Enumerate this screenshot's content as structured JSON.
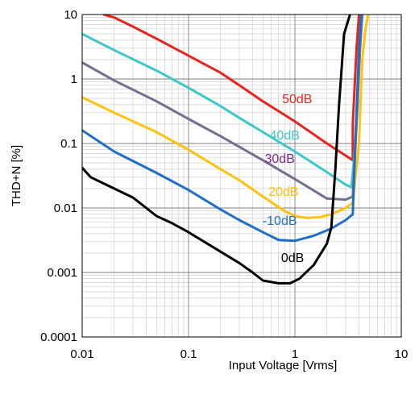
{
  "chart_data": {
    "type": "line",
    "title": "",
    "xlabel": "Input Voltage [Vrms]",
    "ylabel": "THD+N [%]",
    "x_scale": "log",
    "y_scale": "log",
    "xlim": [
      0.01,
      10
    ],
    "ylim": [
      0.0001,
      10
    ],
    "grid": true,
    "x_ticks": [
      "0.01",
      "0.1",
      "1",
      "10"
    ],
    "y_ticks": [
      "0.0001",
      "0.001",
      "0.01",
      "0.1",
      "1",
      "10"
    ],
    "series": [
      {
        "name": "50dB",
        "color": "#e8231c",
        "points": [
          [
            0.016,
            10
          ],
          [
            0.02,
            9
          ],
          [
            0.03,
            6.5
          ],
          [
            0.05,
            4.2
          ],
          [
            0.1,
            2.3
          ],
          [
            0.2,
            1.25
          ],
          [
            0.3,
            0.8
          ],
          [
            0.5,
            0.45
          ],
          [
            1,
            0.22
          ],
          [
            2,
            0.1
          ],
          [
            3,
            0.065
          ],
          [
            3.5,
            0.055
          ],
          [
            3.5,
            0.2
          ],
          [
            3.8,
            3
          ],
          [
            4.0,
            10
          ]
        ]
      },
      {
        "name": "40dB",
        "color": "#3cc8c8",
        "points": [
          [
            0.01,
            5
          ],
          [
            0.02,
            2.8
          ],
          [
            0.05,
            1.35
          ],
          [
            0.1,
            0.73
          ],
          [
            0.2,
            0.38
          ],
          [
            0.3,
            0.25
          ],
          [
            0.5,
            0.15
          ],
          [
            1,
            0.075
          ],
          [
            2,
            0.036
          ],
          [
            3,
            0.023
          ],
          [
            3.4,
            0.021
          ],
          [
            3.7,
            0.1
          ],
          [
            4.0,
            2
          ],
          [
            4.2,
            10
          ]
        ]
      },
      {
        "name": "30dB",
        "color": "#707090",
        "points": [
          [
            0.01,
            1.8
          ],
          [
            0.02,
            0.95
          ],
          [
            0.05,
            0.45
          ],
          [
            0.1,
            0.24
          ],
          [
            0.2,
            0.13
          ],
          [
            0.5,
            0.055
          ],
          [
            1,
            0.028
          ],
          [
            2,
            0.014
          ],
          [
            3,
            0.0135
          ],
          [
            3.5,
            0.015
          ],
          [
            3.8,
            0.2
          ],
          [
            4.1,
            3
          ],
          [
            4.3,
            10
          ]
        ]
      },
      {
        "name": "20dB",
        "color": "#ffc20e",
        "points": [
          [
            0.01,
            0.52
          ],
          [
            0.02,
            0.3
          ],
          [
            0.05,
            0.15
          ],
          [
            0.1,
            0.08
          ],
          [
            0.2,
            0.04
          ],
          [
            0.3,
            0.027
          ],
          [
            0.5,
            0.015
          ],
          [
            0.8,
            0.009
          ],
          [
            1,
            0.0075
          ],
          [
            1.3,
            0.007
          ],
          [
            1.7,
            0.0072
          ],
          [
            2.2,
            0.008
          ],
          [
            3,
            0.01
          ],
          [
            3.5,
            0.012
          ],
          [
            4.0,
            0.1
          ],
          [
            4.3,
            2
          ],
          [
            4.6,
            6
          ],
          [
            4.9,
            10
          ]
        ]
      },
      {
        "name": "-10dB",
        "color": "#1f6fc8",
        "points": [
          [
            0.01,
            0.16
          ],
          [
            0.02,
            0.075
          ],
          [
            0.05,
            0.035
          ],
          [
            0.1,
            0.019
          ],
          [
            0.2,
            0.0095
          ],
          [
            0.3,
            0.0065
          ],
          [
            0.5,
            0.0042
          ],
          [
            0.7,
            0.0032
          ],
          [
            1,
            0.0031
          ],
          [
            1.5,
            0.0037
          ],
          [
            2.2,
            0.0048
          ],
          [
            3,
            0.0065
          ],
          [
            3.5,
            0.008
          ],
          [
            3.7,
            0.1
          ],
          [
            4.0,
            3
          ],
          [
            4.2,
            10
          ]
        ]
      },
      {
        "name": "0dB",
        "color": "#000000",
        "points": [
          [
            0.01,
            0.042
          ],
          [
            0.012,
            0.03
          ],
          [
            0.02,
            0.02
          ],
          [
            0.03,
            0.0145
          ],
          [
            0.05,
            0.0075
          ],
          [
            0.07,
            0.0058
          ],
          [
            0.1,
            0.0042
          ],
          [
            0.15,
            0.0028
          ],
          [
            0.2,
            0.0021
          ],
          [
            0.3,
            0.0014
          ],
          [
            0.4,
            0.001
          ],
          [
            0.5,
            0.00075
          ],
          [
            0.7,
            0.00068
          ],
          [
            0.9,
            0.00068
          ],
          [
            1.1,
            0.0008
          ],
          [
            1.5,
            0.0013
          ],
          [
            2,
            0.0028
          ],
          [
            2.2,
            0.005
          ],
          [
            2.4,
            0.04
          ],
          [
            2.6,
            0.4
          ],
          [
            2.9,
            5
          ],
          [
            3.3,
            10
          ]
        ]
      }
    ]
  }
}
